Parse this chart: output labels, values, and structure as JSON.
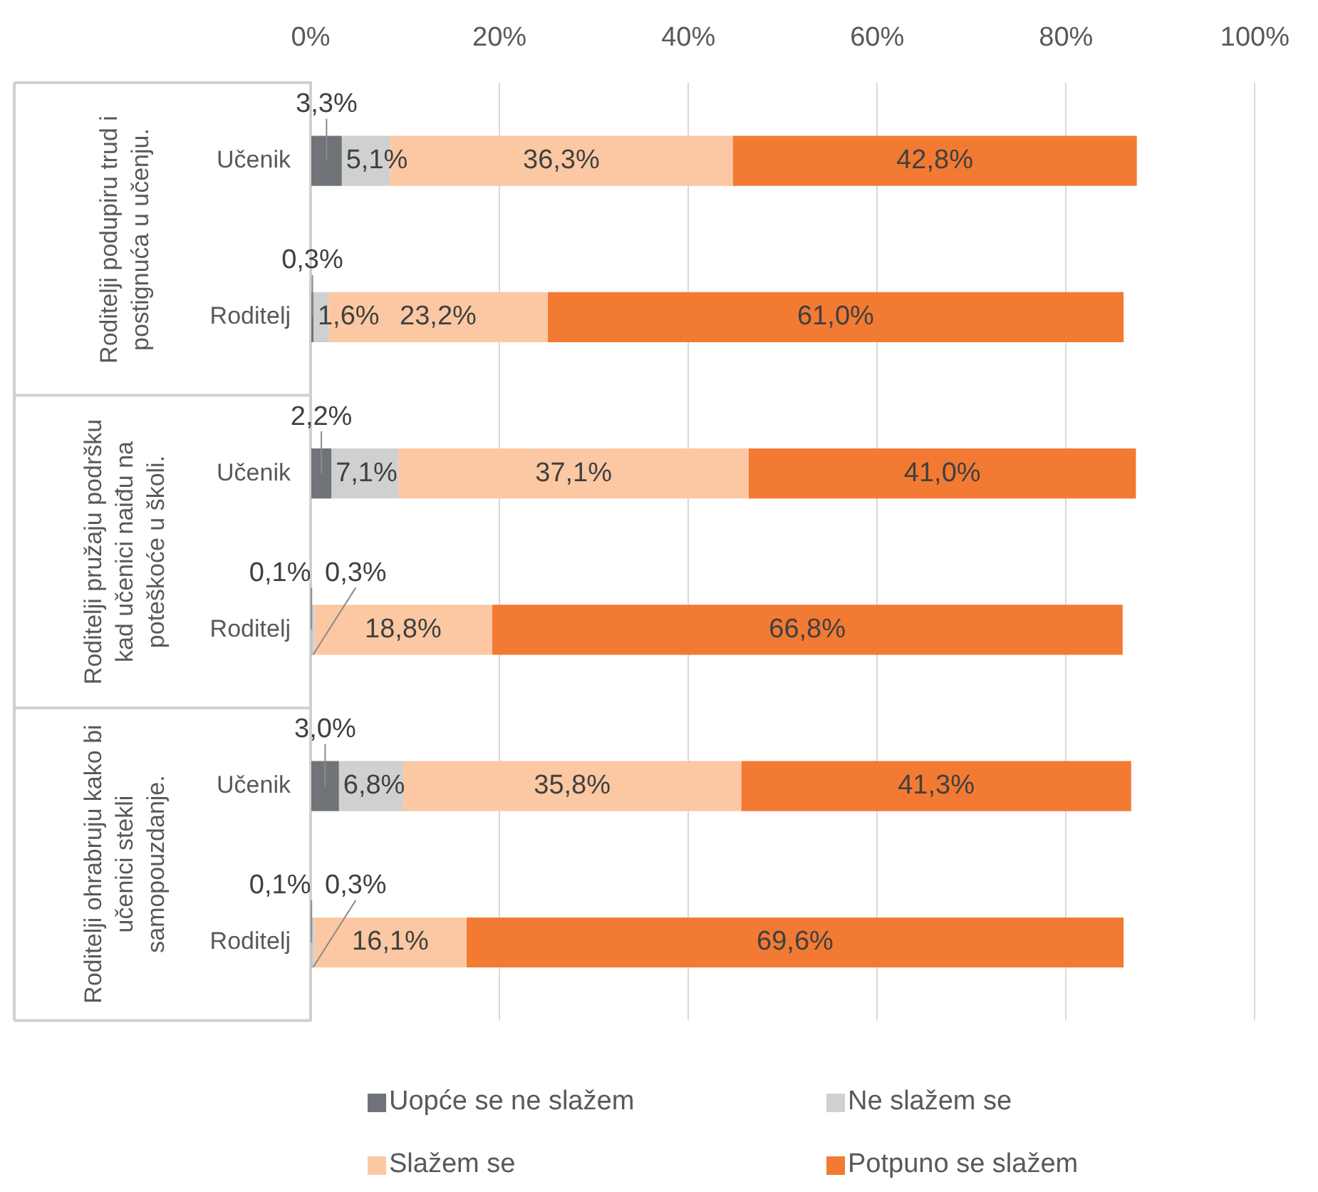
{
  "chart_data": {
    "type": "bar",
    "orientation": "horizontal",
    "stacked": true,
    "categories": [
      "Učenik",
      "Roditelj",
      "Učenik",
      "Roditelj",
      "Učenik",
      "Roditelj"
    ],
    "series": [
      {
        "name": "Uopće se ne slažem",
        "color": "#707377",
        "values": [
          3.3,
          0.3,
          2.2,
          0.1,
          3.0,
          0.1
        ],
        "value_labels": [
          "3,3%",
          "0,3%",
          "2,2%",
          "0,1%",
          "3,0%",
          "0,1%"
        ]
      },
      {
        "name": "Ne slažem se",
        "color": "#cfd0d0",
        "values": [
          5.1,
          1.6,
          7.1,
          0.3,
          6.8,
          0.3
        ],
        "value_labels": [
          "5,1%",
          "1,6%",
          "7,1%",
          "0,3%",
          "6,8%",
          "0,3%"
        ]
      },
      {
        "name": "Slažem se",
        "color": "#fbc8a3",
        "values": [
          36.3,
          23.2,
          37.1,
          18.8,
          35.8,
          16.1
        ],
        "value_labels": [
          "36,3%",
          "23,2%",
          "37,1%",
          "18,8%",
          "35,8%",
          "16,1%"
        ]
      },
      {
        "name": "Potpuno se slažem",
        "color": "#f37a33",
        "values": [
          42.8,
          61.0,
          41.0,
          66.8,
          41.3,
          69.6
        ],
        "value_labels": [
          "42,8%",
          "61,0%",
          "41,0%",
          "66,8%",
          "41,3%",
          "69,6%"
        ]
      }
    ],
    "xlim": [
      0,
      100
    ],
    "xticks": [
      {
        "value": 0,
        "label": "0%"
      },
      {
        "value": 20,
        "label": "20%"
      },
      {
        "value": 40,
        "label": "40%"
      },
      {
        "value": 60,
        "label": "60%"
      },
      {
        "value": 80,
        "label": "80%"
      },
      {
        "value": 100,
        "label": "100%"
      }
    ],
    "grid": "x",
    "legend": "bottom",
    "annotations": [
      "Roditelji podupiru trud i postignuća u učenju.",
      "Roditelji pružaju podršku kad učenici naiđu na poteškoće u školi.",
      "Roditelji ohrabruju kako bi učenici stekli samopouzdanje."
    ]
  }
}
